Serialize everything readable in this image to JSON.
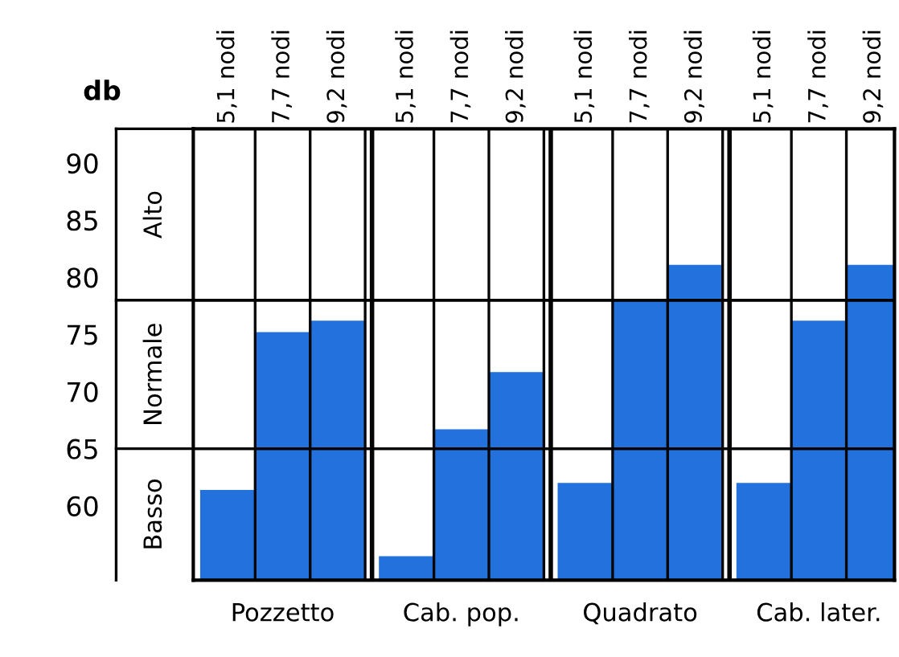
{
  "chart_data": {
    "type": "bar",
    "ylabel": "db",
    "categories": [
      "Pozzetto",
      "Cab. pop.",
      "Quadrato",
      "Cab. later."
    ],
    "series": [
      {
        "name": "5,1 nodi",
        "color": "#1f6fdc",
        "values": [
          61.4,
          55.6,
          62.0,
          62.0
        ]
      },
      {
        "name": "7,7 nodi",
        "color": "#1f6fdc",
        "values": [
          75.2,
          66.7,
          78.0,
          76.2
        ]
      },
      {
        "name": "9,2 nodi",
        "color": "#1f6fdc",
        "values": [
          76.2,
          71.7,
          81.1,
          81.1
        ]
      }
    ],
    "ylim": [
      53.5,
      93
    ],
    "yticks": [
      60,
      65,
      70,
      75,
      80,
      85,
      90
    ],
    "bands": [
      {
        "axis": "y",
        "from": 53.5,
        "to": 65,
        "label": "Basso"
      },
      {
        "axis": "y",
        "from": 65,
        "to": 78,
        "label": "Normale"
      },
      {
        "axis": "y",
        "from": 78,
        "to": 93,
        "label": "Alto"
      }
    ],
    "grid": false,
    "legend": false
  }
}
